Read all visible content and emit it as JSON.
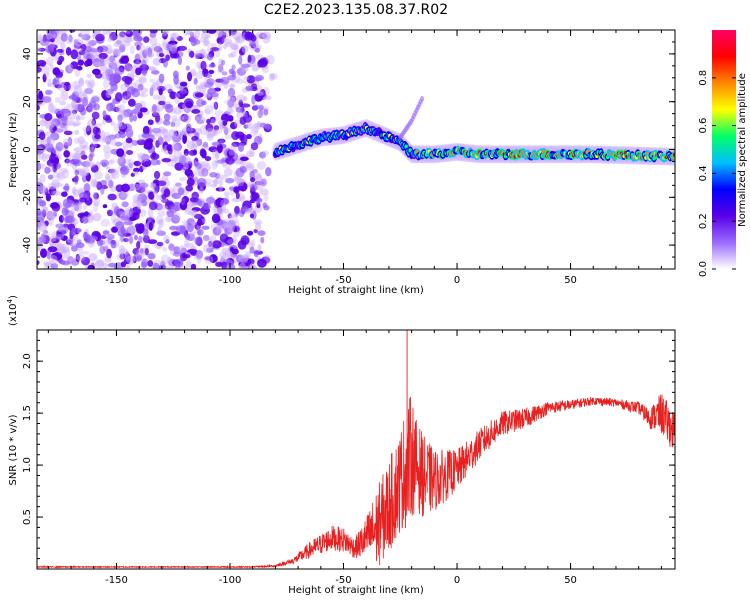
{
  "title": "C2E2.2023.135.08.37.R02",
  "chart_data": [
    {
      "type": "heatmap",
      "xlabel": "Height of straight line (km)",
      "ylabel": "Frequency (Hz)",
      "xlim": [
        -185,
        96
      ],
      "ylim": [
        -50,
        50
      ],
      "xticks": [
        -150,
        -100,
        -50,
        0,
        50
      ],
      "yticks": [
        -40,
        -20,
        0,
        20,
        40
      ],
      "colorbar": {
        "label": "Normalized spectral amplitude",
        "range": [
          0,
          1
        ],
        "ticks": [
          "0.0",
          "0.2",
          "0.4",
          "0.6",
          "0.8"
        ],
        "colors": [
          "#ffffff",
          "#9a6bff",
          "#5a00e6",
          "#0000ff",
          "#00bfff",
          "#00ff66",
          "#ffff00",
          "#ff8800",
          "#ff0000",
          "#ff0066"
        ]
      },
      "noise_region_x": [
        -185,
        -80
      ],
      "ridge": [
        {
          "x": -80,
          "y": -1
        },
        {
          "x": -70,
          "y": 2
        },
        {
          "x": -60,
          "y": 5
        },
        {
          "x": -50,
          "y": 6
        },
        {
          "x": -40,
          "y": 9
        },
        {
          "x": -30,
          "y": 5
        },
        {
          "x": -25,
          "y": 3
        },
        {
          "x": -20,
          "y": -2
        },
        {
          "x": -10,
          "y": -2
        },
        {
          "x": 0,
          "y": -1
        },
        {
          "x": 10,
          "y": -2
        },
        {
          "x": 30,
          "y": -2
        },
        {
          "x": 60,
          "y": -2
        },
        {
          "x": 96,
          "y": -3
        }
      ],
      "branch": [
        {
          "x": -25,
          "y": 5
        },
        {
          "x": -20,
          "y": 12
        },
        {
          "x": -15,
          "y": 22
        }
      ]
    },
    {
      "type": "line",
      "ylabel": "SNR (10 * v/v)",
      "scale_label": "(x10",
      "scale_exp": "4",
      "xlabel": "Height of straight line (km)",
      "xlim": [
        -185,
        96
      ],
      "ylim": [
        0,
        2.3
      ],
      "xticks": [
        -150,
        -100,
        -50,
        0,
        50
      ],
      "yticks": [
        "0.5",
        "1.0",
        "1.5",
        "2.0"
      ],
      "color": "#e82020",
      "x": [
        -185,
        -120,
        -90,
        -80,
        -72,
        -65,
        -55,
        -50,
        -45,
        -40,
        -35,
        -30,
        -25,
        -22,
        -20,
        -18,
        -15,
        -10,
        -5,
        0,
        10,
        20,
        30,
        40,
        50,
        60,
        70,
        80,
        85,
        90,
        96
      ],
      "y": [
        0.02,
        0.02,
        0.02,
        0.03,
        0.08,
        0.18,
        0.3,
        0.28,
        0.2,
        0.3,
        0.4,
        0.6,
        0.85,
        1.0,
        1.1,
        1.0,
        0.9,
        0.85,
        0.9,
        0.95,
        1.2,
        1.4,
        1.45,
        1.55,
        1.58,
        1.62,
        1.6,
        1.55,
        1.45,
        1.5,
        1.3
      ],
      "noise_amplitude": [
        0.005,
        0.005,
        0.005,
        0.01,
        0.03,
        0.08,
        0.12,
        0.12,
        0.1,
        0.2,
        0.4,
        0.45,
        0.5,
        0.6,
        0.6,
        0.45,
        0.4,
        0.3,
        0.25,
        0.2,
        0.15,
        0.12,
        0.1,
        0.06,
        0.05,
        0.04,
        0.04,
        0.06,
        0.1,
        0.2,
        0.2
      ]
    }
  ]
}
